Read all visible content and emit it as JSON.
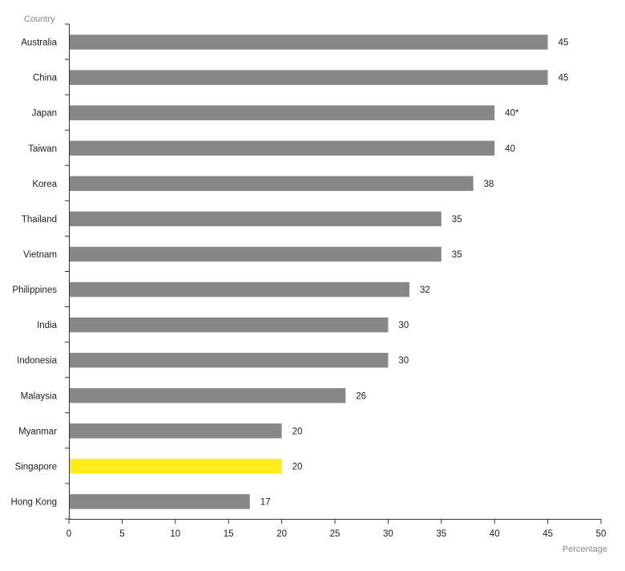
{
  "chart_data": {
    "type": "bar",
    "orientation": "horizontal",
    "ylabel": "Country",
    "xlabel": "Percentage",
    "xlim": [
      0,
      50
    ],
    "xticks": [
      0,
      5,
      10,
      15,
      20,
      25,
      30,
      35,
      40,
      45,
      50
    ],
    "grid": false,
    "categories": [
      "Australia",
      "China",
      "Japan",
      "Taiwan",
      "Korea",
      "Thailand",
      "Vietnam",
      "Philippines",
      "India",
      "Indonesia",
      "Malaysia",
      "Myanmar",
      "Singapore",
      "Hong Kong"
    ],
    "values": [
      45,
      45,
      40,
      40,
      38,
      35,
      35,
      32,
      30,
      30,
      26,
      20,
      20,
      17
    ],
    "value_labels": [
      "45",
      "45",
      "40*",
      "40",
      "38",
      "35",
      "35",
      "32",
      "30",
      "30",
      "26",
      "20",
      "20",
      "17"
    ],
    "colors": {
      "default": "#878787",
      "highlight": "#ffec19",
      "highlight_category": "Singapore"
    }
  }
}
